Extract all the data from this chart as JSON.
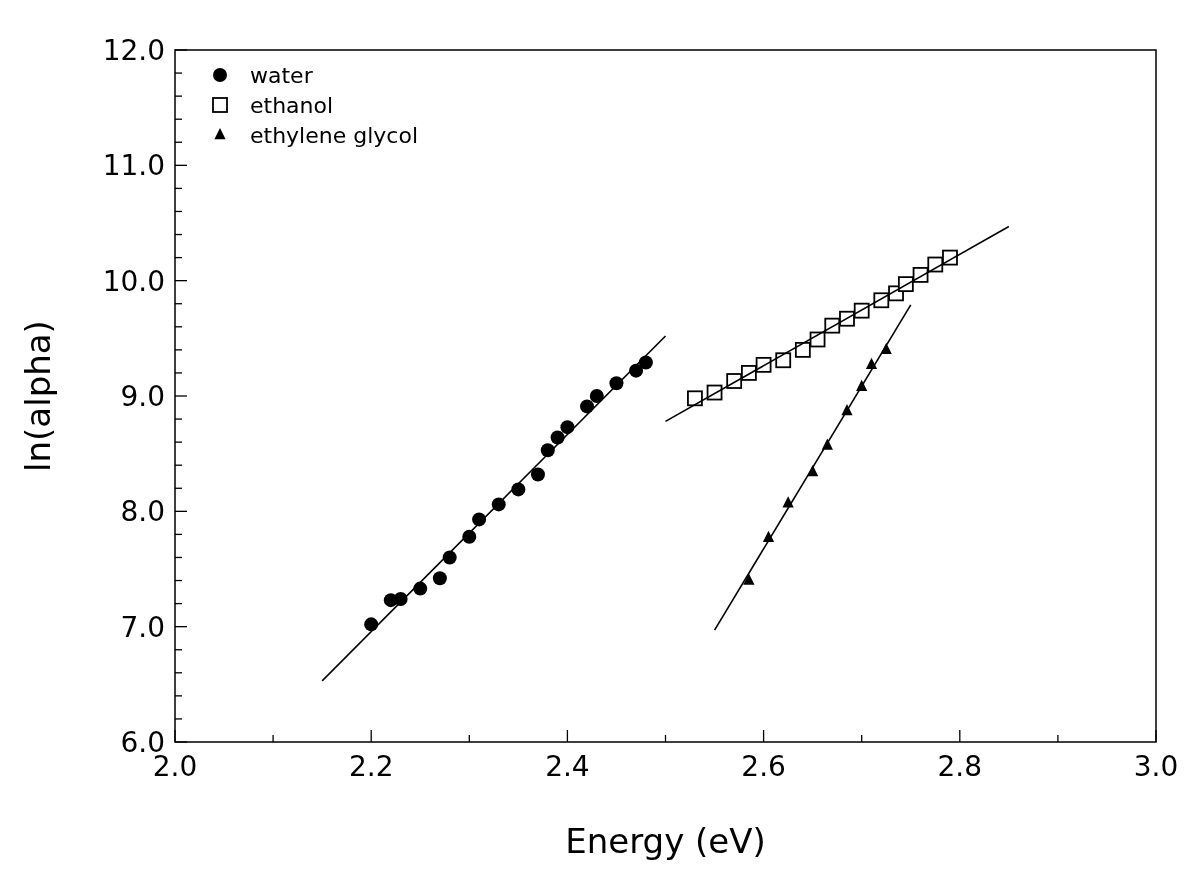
{
  "chart_data": {
    "type": "scatter",
    "xlabel": "Energy (eV)",
    "ylabel": "ln(alpha)",
    "xlim": [
      2.0,
      3.0
    ],
    "ylim": [
      6.0,
      12.0
    ],
    "xticks": [
      {
        "value": 2.0,
        "label": "2.0"
      },
      {
        "value": 2.1,
        "label": null
      },
      {
        "value": 2.2,
        "label": "2.2"
      },
      {
        "value": 2.3,
        "label": null
      },
      {
        "value": 2.4,
        "label": "2.4"
      },
      {
        "value": 2.5,
        "label": null
      },
      {
        "value": 2.6,
        "label": "2.6"
      },
      {
        "value": 2.7,
        "label": null
      },
      {
        "value": 2.8,
        "label": "2.8"
      },
      {
        "value": 2.9,
        "label": null
      },
      {
        "value": 3.0,
        "label": "3.0"
      }
    ],
    "yticks": [
      {
        "value": 6,
        "label": "6.0"
      },
      {
        "value": 6.2,
        "label": null
      },
      {
        "value": 6.4,
        "label": null
      },
      {
        "value": 6.6,
        "label": null
      },
      {
        "value": 6.8,
        "label": null
      },
      {
        "value": 7,
        "label": "7.0"
      },
      {
        "value": 7.2,
        "label": null
      },
      {
        "value": 7.4,
        "label": null
      },
      {
        "value": 7.6,
        "label": null
      },
      {
        "value": 7.8,
        "label": null
      },
      {
        "value": 8,
        "label": "8.0"
      },
      {
        "value": 8.2,
        "label": null
      },
      {
        "value": 8.4,
        "label": null
      },
      {
        "value": 8.6,
        "label": null
      },
      {
        "value": 8.8,
        "label": null
      },
      {
        "value": 9,
        "label": "9.0"
      },
      {
        "value": 9.2,
        "label": null
      },
      {
        "value": 9.4,
        "label": null
      },
      {
        "value": 9.6,
        "label": null
      },
      {
        "value": 9.8,
        "label": null
      },
      {
        "value": 10,
        "label": "10.0"
      },
      {
        "value": 10.2,
        "label": null
      },
      {
        "value": 10.4,
        "label": null
      },
      {
        "value": 10.6,
        "label": null
      },
      {
        "value": 10.8,
        "label": null
      },
      {
        "value": 11,
        "label": "11.0"
      },
      {
        "value": 11.2,
        "label": null
      },
      {
        "value": 11.4,
        "label": null
      },
      {
        "value": 11.6,
        "label": null
      },
      {
        "value": 11.8,
        "label": null
      },
      {
        "value": 12,
        "label": "12.0"
      }
    ],
    "grid": false,
    "legend": "top left",
    "series": [
      {
        "name": "water",
        "marker": "circle",
        "color": "#000000",
        "x": [
          2.2,
          2.22,
          2.23,
          2.25,
          2.27,
          2.28,
          2.3,
          2.31,
          2.33,
          2.35,
          2.37,
          2.38,
          2.39,
          2.4,
          2.42,
          2.43,
          2.45,
          2.47,
          2.48
        ],
        "values": [
          7.02,
          7.23,
          7.24,
          7.33,
          7.42,
          7.6,
          7.78,
          7.93,
          8.06,
          8.19,
          8.32,
          8.53,
          8.64,
          8.73,
          8.91,
          9.0,
          9.11,
          9.22,
          9.29
        ]
      },
      {
        "name": "ethanol",
        "marker": "square",
        "color": "#000000",
        "x": [
          2.53,
          2.55,
          2.57,
          2.585,
          2.6,
          2.62,
          2.64,
          2.655,
          2.67,
          2.685,
          2.7,
          2.72,
          2.735,
          2.745,
          2.76,
          2.775,
          2.79
        ],
        "values": [
          8.98,
          9.03,
          9.13,
          9.2,
          9.27,
          9.31,
          9.4,
          9.49,
          9.61,
          9.67,
          9.74,
          9.83,
          9.89,
          9.97,
          10.05,
          10.14,
          10.2
        ]
      },
      {
        "name": "ethylene glycol",
        "marker": "triangle",
        "color": "#000000",
        "x": [
          2.585,
          2.605,
          2.625,
          2.65,
          2.665,
          2.685,
          2.7,
          2.71,
          2.725
        ],
        "values": [
          7.4,
          7.77,
          8.07,
          8.34,
          8.57,
          8.87,
          9.08,
          9.27,
          9.4
        ]
      },
      {
        "type": "line",
        "marker": "none",
        "line_style": "solid",
        "color": "#000000",
        "x": [
          2.15,
          2.5
        ],
        "values": [
          6.53,
          9.52
        ]
      },
      {
        "type": "line",
        "marker": "none",
        "line_style": "solid",
        "color": "#000000",
        "x": [
          2.5,
          2.85
        ],
        "values": [
          8.78,
          10.47
        ]
      },
      {
        "type": "line",
        "marker": "none",
        "line_style": "solid",
        "color": "#000000",
        "x": [
          2.55,
          2.75
        ],
        "values": [
          6.97,
          9.79
        ]
      }
    ]
  }
}
